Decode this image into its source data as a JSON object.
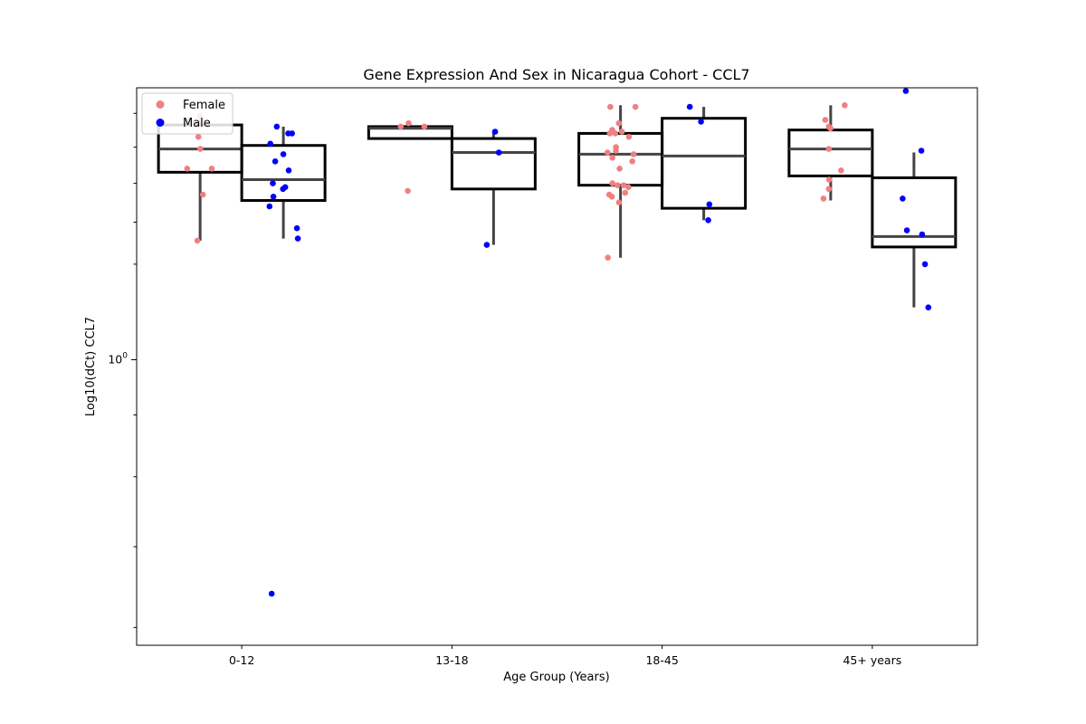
{
  "chart_data": {
    "type": "box",
    "title": "Gene Expression And Sex in Nicaragua Cohort - CCL7",
    "xlabel": "Age Group (Years)",
    "ylabel": "Log10(dCt) CCL7",
    "yscale": "log",
    "ylim": [
      0.58,
      1.68
    ],
    "y_tick_label": "10^0",
    "categories": [
      "0-12",
      "13-18",
      "18-45",
      "45+ years"
    ],
    "legend": {
      "placement": "upper-left",
      "entries": [
        {
          "name": "Female",
          "color": "#f08080"
        },
        {
          "name": "Male",
          "color": "#0000ff"
        }
      ]
    },
    "colors": {
      "box_edge": "#000000",
      "whisker": "#444444",
      "female": "#f08080",
      "male": "#0000ff"
    },
    "series": [
      {
        "name": "Female",
        "boxes": [
          {
            "whislo": 1.255,
            "q1": 1.43,
            "median": 1.495,
            "q3": 1.565,
            "whishi": 1.6
          },
          {
            "whislo": 1.525,
            "q1": 1.525,
            "median": 1.555,
            "q3": 1.56,
            "whishi": 1.565
          },
          {
            "whislo": 1.215,
            "q1": 1.395,
            "median": 1.48,
            "q3": 1.54,
            "whishi": 1.625
          },
          {
            "whislo": 1.355,
            "q1": 1.42,
            "median": 1.495,
            "q3": 1.55,
            "whishi": 1.625
          }
        ],
        "points": [
          [
            1.59,
            1.58,
            1.58,
            1.57,
            1.53,
            1.495,
            1.44,
            1.44,
            1.37,
            1.255
          ],
          [
            1.57,
            1.56,
            1.56,
            1.38
          ],
          [
            1.62,
            1.62,
            1.57,
            1.55,
            1.545,
            1.54,
            1.54,
            1.53,
            1.5,
            1.49,
            1.485,
            1.48,
            1.47,
            1.46,
            1.44,
            1.4,
            1.395,
            1.395,
            1.39,
            1.375,
            1.37,
            1.365,
            1.35,
            1.215
          ],
          [
            1.625,
            1.58,
            1.56,
            1.555,
            1.495,
            1.435,
            1.41,
            1.385,
            1.36
          ]
        ]
      },
      {
        "name": "Male",
        "boxes": [
          {
            "whislo": 1.26,
            "q1": 1.355,
            "median": 1.41,
            "q3": 1.505,
            "whishi": 1.56
          },
          {
            "whislo": 1.245,
            "q1": 1.385,
            "median": 1.485,
            "q3": 1.525,
            "whishi": 1.55
          },
          {
            "whislo": 1.305,
            "q1": 1.335,
            "median": 1.475,
            "q3": 1.585,
            "whishi": 1.62
          },
          {
            "whislo": 1.105,
            "q1": 1.24,
            "median": 1.265,
            "q3": 1.415,
            "whishi": 1.485
          }
        ],
        "points": [
          [
            1.56,
            1.54,
            1.54,
            1.51,
            1.48,
            1.46,
            1.435,
            1.4,
            1.39,
            1.385,
            1.365,
            1.34,
            1.285,
            1.26,
            0.64
          ],
          [
            1.545,
            1.485,
            1.245
          ],
          [
            1.62,
            1.575,
            1.345,
            1.305
          ],
          [
            1.67,
            1.49,
            1.36,
            1.28,
            1.27,
            1.2,
            1.105
          ]
        ]
      }
    ]
  }
}
